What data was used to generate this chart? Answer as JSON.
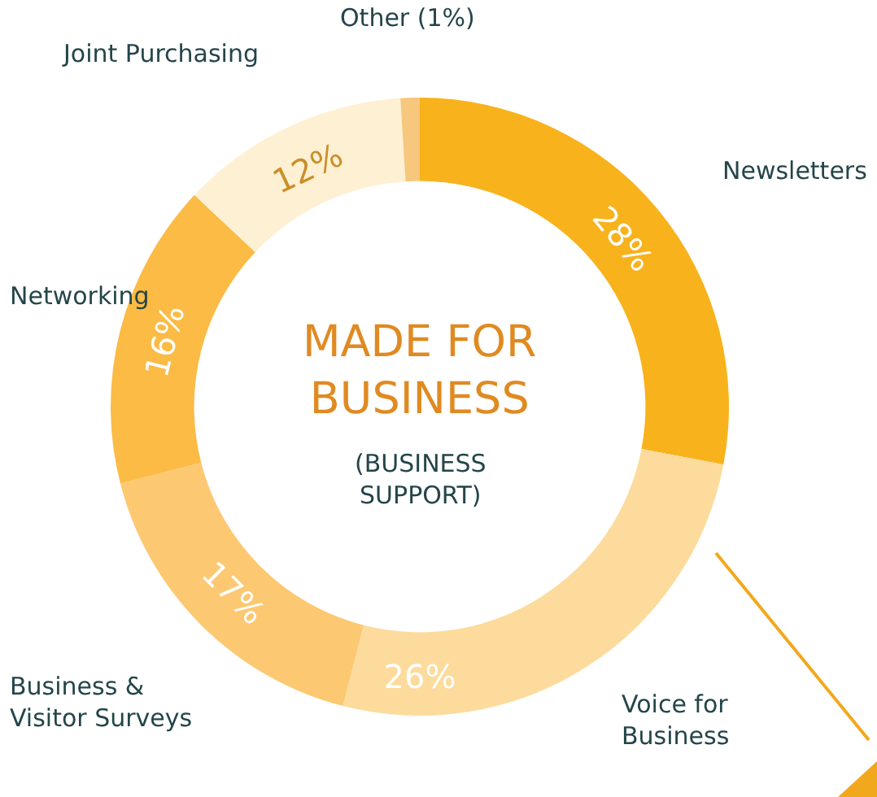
{
  "chart_data": {
    "type": "donut",
    "title": "MADE FOR BUSINESS",
    "subtitle": "(BUSINESS SUPPORT)",
    "categories": [
      "Newsletters",
      "Voice for Business",
      "Business & Visitor Surveys",
      "Networking",
      "Joint Purchasing",
      "Other (1%)"
    ],
    "values": [
      28,
      26,
      17,
      16,
      12,
      1
    ],
    "colors": [
      "#f8b21c",
      "#fddb9c",
      "#fcc872",
      "#fbbb45",
      "#fef0d2",
      "#f6c77c"
    ],
    "value_labels": [
      "28%",
      "26%",
      "17%",
      "16%",
      "12%",
      null
    ],
    "legend": false
  }
}
